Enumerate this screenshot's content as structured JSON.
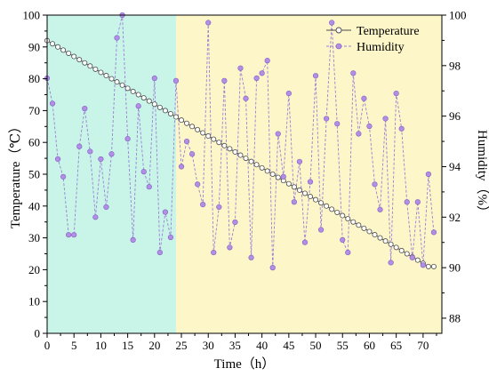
{
  "colors": {
    "shade_early": "#c9f5e8",
    "shade_late": "#fdf6c8",
    "temperature_line": "#4a4a4a",
    "temperature_marker_fill": "#ffffff",
    "humidity_line": "#9b7fd6",
    "humidity_marker": "#b48ee6",
    "humidity_marker_edge": "#7d5fc0"
  },
  "chart_data": {
    "type": "line",
    "xlabel": "Time（h）",
    "ylabel_left": "Temperature（℃）",
    "ylabel_right": "Humidity（%）",
    "xlim": [
      0,
      73.5
    ],
    "ylim_left": [
      0,
      100
    ],
    "ylim_right": [
      87.4,
      100
    ],
    "x_ticks": [
      0,
      5,
      10,
      15,
      20,
      25,
      30,
      35,
      40,
      45,
      50,
      55,
      60,
      65,
      70
    ],
    "y_ticks_left": [
      0,
      10,
      20,
      30,
      40,
      50,
      60,
      70,
      80,
      90,
      100
    ],
    "y_ticks_right": [
      88,
      90,
      92,
      94,
      96,
      98,
      100
    ],
    "shaded_regions": [
      {
        "from": 0,
        "to": 24,
        "color_key": "shade_early"
      },
      {
        "from": 24,
        "to": 73.5,
        "color_key": "shade_late"
      }
    ],
    "legend_position": "top-right",
    "grid": false,
    "series": [
      {
        "name": "Temperature",
        "axis": "left",
        "marker": "open-circle",
        "x": [
          0,
          1,
          2,
          3,
          4,
          5,
          6,
          7,
          8,
          9,
          10,
          11,
          12,
          13,
          14,
          15,
          16,
          17,
          18,
          19,
          20,
          21,
          22,
          23,
          24,
          25,
          26,
          27,
          28,
          29,
          30,
          31,
          32,
          33,
          34,
          35,
          36,
          37,
          38,
          39,
          40,
          41,
          42,
          43,
          44,
          45,
          46,
          47,
          48,
          49,
          50,
          51,
          52,
          53,
          54,
          55,
          56,
          57,
          58,
          59,
          60,
          61,
          62,
          63,
          64,
          65,
          66,
          67,
          68,
          69,
          70,
          71,
          72
        ],
        "values": [
          92.0,
          91.0,
          90.0,
          89.0,
          88.0,
          87.0,
          86.0,
          85.0,
          84.0,
          83.0,
          82.0,
          81.0,
          80.0,
          79.0,
          78.0,
          77.0,
          76.0,
          75.0,
          74.0,
          73.0,
          72.0,
          71.0,
          70.0,
          69.0,
          68.0,
          67.0,
          66.0,
          65.0,
          64.0,
          63.0,
          62.0,
          61.0,
          60.0,
          59.0,
          58.0,
          57.0,
          56.0,
          55.0,
          54.0,
          53.0,
          52.0,
          51.0,
          50.0,
          49.0,
          48.0,
          47.0,
          46.0,
          45.0,
          44.0,
          43.0,
          42.0,
          41.0,
          40.0,
          39.0,
          38.0,
          37.0,
          36.0,
          35.0,
          34.0,
          33.0,
          32.0,
          31.0,
          30.0,
          29.0,
          28.0,
          27.0,
          26.0,
          25.0,
          24.0,
          23.0,
          22.0,
          21.0,
          21.0
        ]
      },
      {
        "name": "Humidity",
        "axis": "right",
        "marker": "filled-circle",
        "x": [
          0,
          1,
          2,
          3,
          4,
          5,
          6,
          7,
          8,
          9,
          10,
          11,
          12,
          13,
          14,
          15,
          16,
          17,
          18,
          19,
          20,
          21,
          22,
          23,
          24,
          25,
          26,
          27,
          28,
          29,
          30,
          31,
          32,
          33,
          34,
          35,
          36,
          37,
          38,
          39,
          40,
          41,
          42,
          43,
          44,
          45,
          46,
          47,
          48,
          49,
          50,
          51,
          52,
          53,
          54,
          55,
          56,
          57,
          58,
          59,
          60,
          61,
          62,
          63,
          64,
          65,
          66,
          67,
          68,
          69,
          70,
          71,
          72
        ],
        "values": [
          97.5,
          96.5,
          94.3,
          93.6,
          91.3,
          91.3,
          94.8,
          96.3,
          94.6,
          92.0,
          94.3,
          92.4,
          94.5,
          99.1,
          100.0,
          95.1,
          91.1,
          96.4,
          93.8,
          93.2,
          97.5,
          90.6,
          92.2,
          91.2,
          97.4,
          94.0,
          95.0,
          94.5,
          93.3,
          92.5,
          99.7,
          90.6,
          92.4,
          97.4,
          90.8,
          91.8,
          97.9,
          96.7,
          90.4,
          97.5,
          97.7,
          98.2,
          90.0,
          95.3,
          93.6,
          96.9,
          92.6,
          94.2,
          91.0,
          93.4,
          97.6,
          91.5,
          95.9,
          99.7,
          95.7,
          91.1,
          90.6,
          97.7,
          95.3,
          96.7,
          95.6,
          93.3,
          92.3,
          95.9,
          90.2,
          96.9,
          95.5,
          92.6,
          90.4,
          92.6,
          90.1,
          93.7,
          91.4
        ]
      }
    ]
  }
}
